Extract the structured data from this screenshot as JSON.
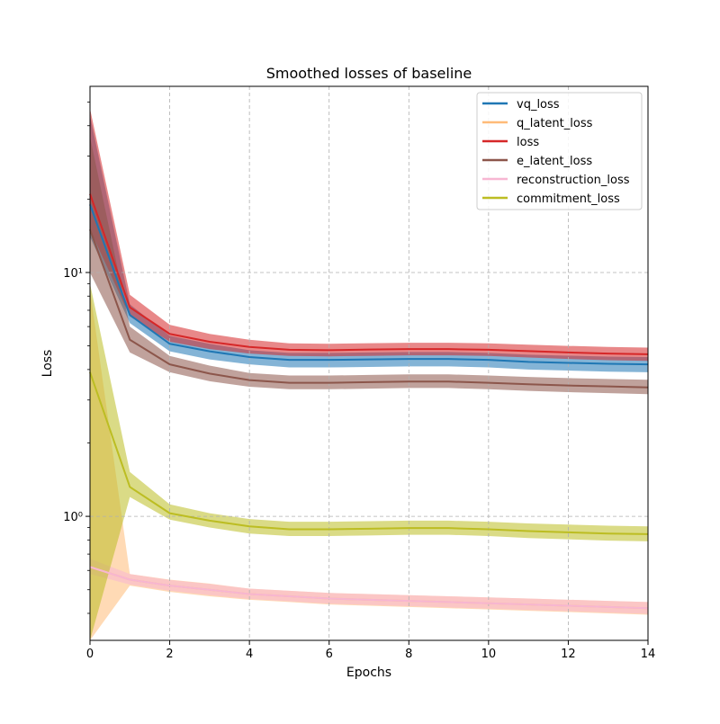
{
  "chart_data": {
    "type": "line",
    "title": "Smoothed losses of baseline",
    "xlabel": "Epochs",
    "ylabel": "Loss",
    "yscale": "log",
    "xlim": [
      0,
      14
    ],
    "ylim": [
      0.31,
      58
    ],
    "grid": true,
    "legend_position": "top-right",
    "x": [
      0,
      1,
      2,
      3,
      4,
      5,
      6,
      7,
      8,
      9,
      10,
      11,
      12,
      13,
      14
    ],
    "x_ticks": [
      0,
      2,
      4,
      6,
      8,
      10,
      12,
      14
    ],
    "x_tick_labels": [
      "0",
      "2",
      "4",
      "6",
      "8",
      "10",
      "12",
      "14"
    ],
    "y_ticks": [
      1,
      10
    ],
    "y_tick_labels": [
      "10⁰",
      "10¹"
    ],
    "series": [
      {
        "name": "vq_loss",
        "color": "#1f77b4",
        "values": [
          19.0,
          6.7,
          5.1,
          4.75,
          4.5,
          4.38,
          4.38,
          4.4,
          4.42,
          4.42,
          4.38,
          4.3,
          4.26,
          4.22,
          4.2
        ],
        "band": [
          [
            14.0,
            6.2,
            4.75,
            4.4,
            4.2,
            4.08,
            4.08,
            4.1,
            4.12,
            4.12,
            4.08,
            4.0,
            3.96,
            3.92,
            3.9
          ],
          [
            44.0,
            7.4,
            5.5,
            5.1,
            4.8,
            4.68,
            4.68,
            4.7,
            4.72,
            4.72,
            4.68,
            4.6,
            4.56,
            4.52,
            4.5
          ]
        ]
      },
      {
        "name": "q_latent_loss",
        "color": "#ffbb78",
        "values": [
          0.62,
          0.55,
          0.52,
          0.5,
          0.48,
          0.47,
          0.46,
          0.455,
          0.45,
          0.445,
          0.44,
          0.435,
          0.43,
          0.425,
          0.42
        ],
        "band": [
          [
            0.31,
            0.52,
            0.49,
            0.47,
            0.455,
            0.445,
            0.435,
            0.43,
            0.425,
            0.42,
            0.415,
            0.41,
            0.405,
            0.4,
            0.395
          ],
          [
            8.5,
            0.58,
            0.55,
            0.53,
            0.505,
            0.495,
            0.485,
            0.48,
            0.475,
            0.47,
            0.465,
            0.46,
            0.455,
            0.45,
            0.445
          ]
        ]
      },
      {
        "name": "loss",
        "color": "#d62728",
        "values": [
          21.0,
          7.2,
          5.6,
          5.2,
          4.95,
          4.82,
          4.8,
          4.83,
          4.85,
          4.85,
          4.82,
          4.76,
          4.7,
          4.65,
          4.62
        ],
        "band": [
          [
            15.0,
            6.6,
            5.2,
            4.85,
            4.65,
            4.55,
            4.53,
            4.55,
            4.57,
            4.57,
            4.55,
            4.48,
            4.42,
            4.37,
            4.34
          ],
          [
            47.0,
            8.1,
            6.1,
            5.6,
            5.3,
            5.12,
            5.1,
            5.13,
            5.15,
            5.15,
            5.12,
            5.06,
            5.0,
            4.95,
            4.92
          ]
        ]
      },
      {
        "name": "e_latent_loss",
        "color": "#8c564b",
        "values": [
          15.0,
          5.3,
          4.2,
          3.85,
          3.62,
          3.53,
          3.53,
          3.55,
          3.57,
          3.57,
          3.53,
          3.48,
          3.44,
          3.41,
          3.38
        ],
        "band": [
          [
            10.0,
            4.7,
            3.9,
            3.58,
            3.4,
            3.32,
            3.32,
            3.34,
            3.36,
            3.36,
            3.32,
            3.27,
            3.23,
            3.2,
            3.17
          ],
          [
            36.0,
            6.0,
            4.55,
            4.15,
            3.87,
            3.78,
            3.78,
            3.8,
            3.82,
            3.82,
            3.78,
            3.73,
            3.69,
            3.66,
            3.63
          ]
        ]
      },
      {
        "name": "reconstruction_loss",
        "color": "#f7b6d2",
        "values": [
          0.62,
          0.55,
          0.52,
          0.5,
          0.48,
          0.47,
          0.46,
          0.455,
          0.45,
          0.445,
          0.44,
          0.435,
          0.43,
          0.425,
          0.42
        ],
        "band": [
          [
            0.58,
            0.525,
            0.495,
            0.475,
            0.458,
            0.448,
            0.438,
            0.433,
            0.428,
            0.423,
            0.418,
            0.413,
            0.408,
            0.403,
            0.398
          ],
          [
            0.67,
            0.58,
            0.548,
            0.528,
            0.505,
            0.495,
            0.485,
            0.48,
            0.475,
            0.47,
            0.465,
            0.46,
            0.455,
            0.45,
            0.445
          ]
        ]
      },
      {
        "name": "commitment_loss",
        "color": "#bcbd22",
        "values": [
          3.9,
          1.32,
          1.03,
          0.96,
          0.91,
          0.885,
          0.885,
          0.89,
          0.895,
          0.895,
          0.885,
          0.87,
          0.86,
          0.85,
          0.845
        ],
        "band": [
          [
            0.31,
            1.2,
            0.97,
            0.9,
            0.85,
            0.83,
            0.83,
            0.835,
            0.84,
            0.84,
            0.83,
            0.815,
            0.805,
            0.795,
            0.79
          ],
          [
            9.0,
            1.52,
            1.12,
            1.03,
            0.975,
            0.95,
            0.95,
            0.955,
            0.96,
            0.96,
            0.95,
            0.935,
            0.925,
            0.915,
            0.91
          ]
        ]
      }
    ]
  }
}
